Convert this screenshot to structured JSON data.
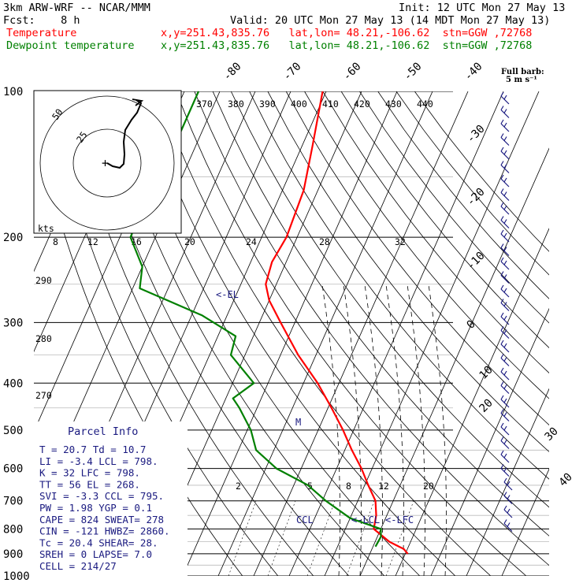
{
  "header": {
    "model": "3km ARW-WRF -- NCAR/MMM",
    "init": "Init: 12 UTC Mon 27 May 13",
    "fcst": "Fcst:    8 h",
    "valid": "Valid: 20 UTC Mon 27 May 13 (14 MDT Mon 27 May 13)",
    "legend": [
      {
        "name": "Temperature",
        "info": "x,y=251.43,835.76   lat,lon= 48.21,-106.62  stn=GGW ,72768",
        "color": "#ff0000"
      },
      {
        "name": "Dewpoint temperature",
        "info": "x,y=251.43,835.76   lat,lon= 48.21,-106.62  stn=GGW ,72768",
        "color": "#008000"
      }
    ]
  },
  "barb_key": {
    "line1": "Full barb:",
    "line2": "5 m s⁻¹"
  },
  "hodograph": {
    "units": "kts",
    "ring_labels": [
      "50",
      "25"
    ],
    "center_marker": "+"
  },
  "parcel_info": {
    "title": "Parcel Info",
    "rows": [
      "T  =    20.7  Td =  10.7",
      "LI =    -3.4  LCL =  798.",
      "K  =     32  LFC = 798.",
      "TT =     56  EL  =  268.",
      "SVI =   -3.3  CCL =  795.",
      "PW =   1.98  YGP =   0.1",
      "CAPE =   824  SWEAT=  278",
      "CIN =   -121  HWBZ= 2860.",
      "Tc =   20.4  SHEAR=  28.",
      "SREH =     0  LAPSE=  7.0",
      "CELL = 214/27"
    ]
  },
  "annotations": {
    "el": "<-EL",
    "m": "M",
    "ccl": "CCL",
    "lcl": "<-LCL",
    "lfc": "<-LFC"
  },
  "chart_data": {
    "type": "skew-t log-p",
    "y_axis": {
      "label_ticks": [
        100,
        200,
        300,
        400,
        500,
        600,
        700,
        800,
        900,
        1000
      ],
      "units": "hPa"
    },
    "top_isotherm_labels": [
      "-80",
      "-70",
      "-60",
      "-50",
      "-40"
    ],
    "right_isotherm_labels": [
      "-30",
      "-20",
      "-10",
      "0",
      "10",
      "20",
      "30",
      "40"
    ],
    "theta_labels": [
      "370",
      "380",
      "390",
      "400",
      "410",
      "420",
      "430",
      "440"
    ],
    "theta_left_labels": [
      "290",
      "280",
      "270"
    ],
    "mixing_ratio_labels": [
      "8",
      "12",
      "16",
      "20",
      "24",
      "28",
      "32"
    ],
    "mixing_ratio_lower_labels": [
      "2",
      "5",
      "8",
      "12",
      "20"
    ],
    "series": [
      {
        "name": "Temperature",
        "color": "#ff0000",
        "points": [
          {
            "p": 100,
            "t": -61
          },
          {
            "p": 130,
            "t": -57
          },
          {
            "p": 160,
            "t": -54
          },
          {
            "p": 200,
            "t": -53
          },
          {
            "p": 225,
            "t": -54
          },
          {
            "p": 250,
            "t": -53
          },
          {
            "p": 270,
            "t": -50
          },
          {
            "p": 300,
            "t": -44
          },
          {
            "p": 350,
            "t": -35
          },
          {
            "p": 400,
            "t": -26
          },
          {
            "p": 450,
            "t": -19
          },
          {
            "p": 500,
            "t": -13
          },
          {
            "p": 550,
            "t": -8
          },
          {
            "p": 600,
            "t": -3
          },
          {
            "p": 650,
            "t": 1
          },
          {
            "p": 700,
            "t": 5
          },
          {
            "p": 750,
            "t": 7
          },
          {
            "p": 800,
            "t": 8
          },
          {
            "p": 850,
            "t": 14
          },
          {
            "p": 880,
            "t": 19
          },
          {
            "p": 900,
            "t": 20.7
          }
        ]
      },
      {
        "name": "Dewpoint temperature",
        "color": "#008000",
        "points": [
          {
            "p": 100,
            "t": -96
          },
          {
            "p": 130,
            "t": -96
          },
          {
            "p": 160,
            "t": -96
          },
          {
            "p": 185,
            "t": -97
          },
          {
            "p": 200,
            "t": -97
          },
          {
            "p": 230,
            "t": -90
          },
          {
            "p": 255,
            "t": -88
          },
          {
            "p": 290,
            "t": -67
          },
          {
            "p": 320,
            "t": -55
          },
          {
            "p": 350,
            "t": -54
          },
          {
            "p": 400,
            "t": -44
          },
          {
            "p": 430,
            "t": -48
          },
          {
            "p": 450,
            "t": -45
          },
          {
            "p": 500,
            "t": -39
          },
          {
            "p": 550,
            "t": -35
          },
          {
            "p": 600,
            "t": -27
          },
          {
            "p": 650,
            "t": -16
          },
          {
            "p": 700,
            "t": -9
          },
          {
            "p": 760,
            "t": 0
          },
          {
            "p": 800,
            "t": 10
          },
          {
            "p": 830,
            "t": 11
          },
          {
            "p": 870,
            "t": 10.7
          }
        ]
      }
    ]
  }
}
